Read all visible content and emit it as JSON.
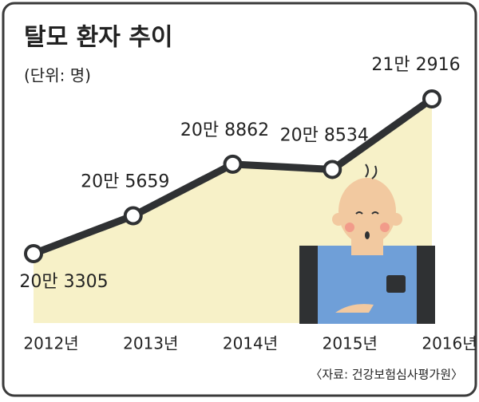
{
  "chart_data": {
    "type": "line",
    "title": "탈모 환자 추이",
    "subtitle": "(단위: 명)",
    "categories": [
      "2012년",
      "2013년",
      "2014년",
      "2015년",
      "2016년"
    ],
    "values": [
      203305,
      205659,
      208862,
      208534,
      212916
    ],
    "value_labels": [
      "20만 3305",
      "20만 5659",
      "20만 8862",
      "20만 8534",
      "21만 2916"
    ],
    "color": "#2f3133",
    "area_color": "#f7f1c8",
    "source": "〈자료: 건강보험심사평가원〉"
  }
}
